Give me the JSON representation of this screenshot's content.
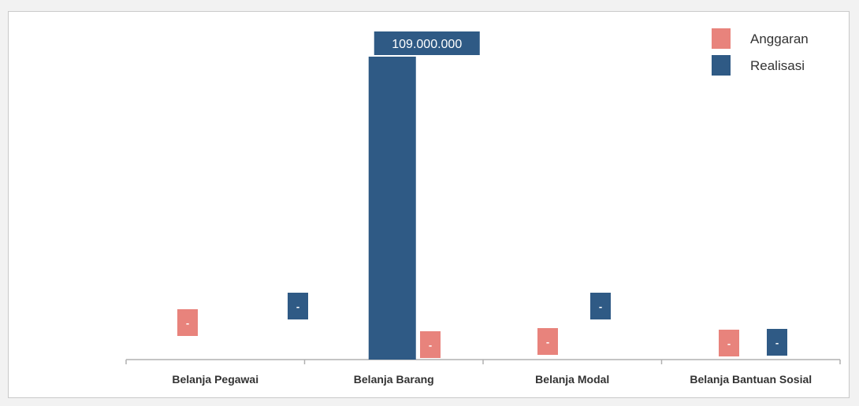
{
  "chart_data": {
    "type": "bar",
    "categories": [
      "Belanja Pegawai",
      "Belanja Barang",
      "Belanja Modal",
      "Belanja Bantuan Sosial"
    ],
    "series": [
      {
        "name": "Anggaran",
        "color": "#e8837c",
        "values": [
          0,
          0,
          0,
          0
        ],
        "labels": [
          "-",
          "-",
          "-",
          "-"
        ]
      },
      {
        "name": "Realisasi",
        "color": "#2f5a85",
        "values": [
          0,
          109000000,
          0,
          0
        ],
        "labels": [
          "-",
          "109.000.000",
          "-",
          "-"
        ]
      }
    ],
    "legend_position": "top-right",
    "grid": false
  }
}
